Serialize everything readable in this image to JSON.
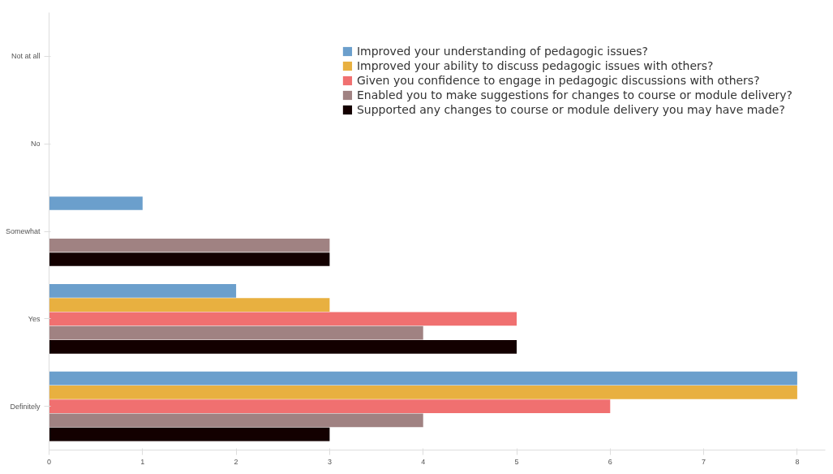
{
  "chart_data": {
    "type": "bar",
    "orientation": "horizontal",
    "categories": [
      "Not at all",
      "No",
      "Somewhat",
      "Yes",
      "Definitely"
    ],
    "series": [
      {
        "name": "Improved your understanding of pedagogic issues?",
        "color": "#6b9fcc",
        "values": [
          0,
          0,
          1,
          2,
          8
        ]
      },
      {
        "name": "Improved your ability to discuss pedagogic issues with others?",
        "color": "#e8b040",
        "values": [
          0,
          0,
          0,
          3,
          8
        ]
      },
      {
        "name": "Given you confidence to engage in pedagogic discussions with others?",
        "color": "#f07070",
        "values": [
          0,
          0,
          0,
          5,
          6
        ]
      },
      {
        "name": "Enabled you to make suggestions for changes to course or module delivery?",
        "color": "#a08282",
        "values": [
          0,
          0,
          3,
          4,
          4
        ]
      },
      {
        "name": "Supported any changes to course or module delivery you may have made?",
        "color": "#130000",
        "values": [
          0,
          0,
          3,
          5,
          3
        ]
      }
    ],
    "xlim": [
      0,
      8.3
    ],
    "xticks": [
      0,
      1,
      2,
      3,
      4,
      5,
      6,
      7,
      8
    ],
    "grid": false,
    "legend": "top right"
  }
}
